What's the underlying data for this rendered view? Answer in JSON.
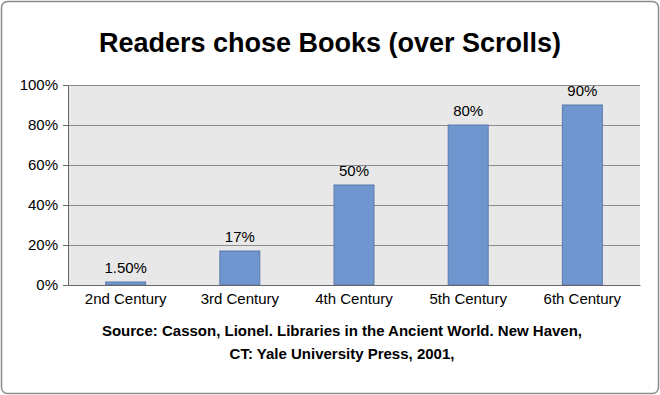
{
  "chart_data": {
    "type": "bar",
    "title": "Readers chose Books (over Scrolls)",
    "categories": [
      "2nd Century",
      "3rd Century",
      "4th Century",
      "5th Century",
      "6th Century"
    ],
    "values": [
      1.5,
      17,
      50,
      80,
      90
    ],
    "value_labels": [
      "1.50%",
      "17%",
      "50%",
      "80%",
      "90%"
    ],
    "data_labels": true,
    "color": "#7096d0",
    "ylim": [
      0,
      100
    ],
    "yticks": [
      {
        "value": 0,
        "label": "0%"
      },
      {
        "value": 20,
        "label": "20%"
      },
      {
        "value": 40,
        "label": "40%"
      },
      {
        "value": 60,
        "label": "60%"
      },
      {
        "value": 80,
        "label": "80%"
      },
      {
        "value": 100,
        "label": "100%"
      }
    ],
    "grid": true,
    "annotations": [
      "Source: Casson, Lionel. Libraries in the Ancient World. New Haven,",
      "CT: Yale University Press, 2001,"
    ]
  }
}
